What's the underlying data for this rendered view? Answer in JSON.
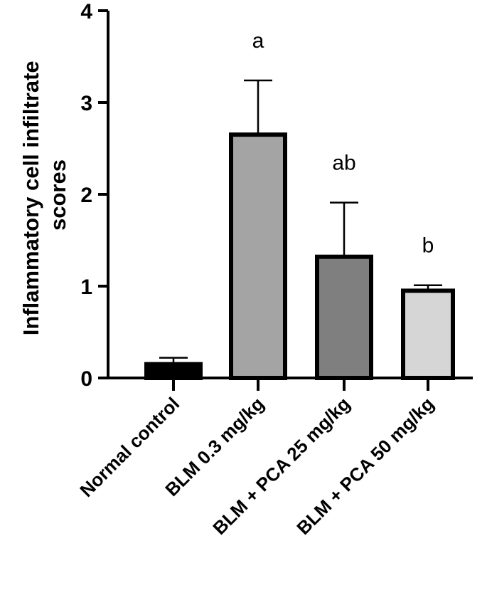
{
  "chart_data": {
    "type": "bar",
    "title": "",
    "xlabel": "",
    "ylabel_lines": [
      "Inflammatory cell infiltrate",
      "scores"
    ],
    "ylim": [
      0,
      4
    ],
    "yticks": [
      "0",
      "1",
      "2",
      "3",
      "4"
    ],
    "categories": [
      "Normal control",
      "BLM 0.3 mg/kg",
      "BLM + PCA 25 mg/kg",
      "BLM + PCA 50 mg/kg"
    ],
    "values": [
      0.15,
      2.65,
      1.32,
      0.95
    ],
    "errors": [
      0.07,
      0.59,
      0.59,
      0.06
    ],
    "significance": [
      "",
      "a",
      "ab",
      "b"
    ],
    "bar_colors": [
      "#000000",
      "#a4a4a4",
      "#7f7f7f",
      "#d6d6d6"
    ],
    "grid": false,
    "legend": "none"
  }
}
